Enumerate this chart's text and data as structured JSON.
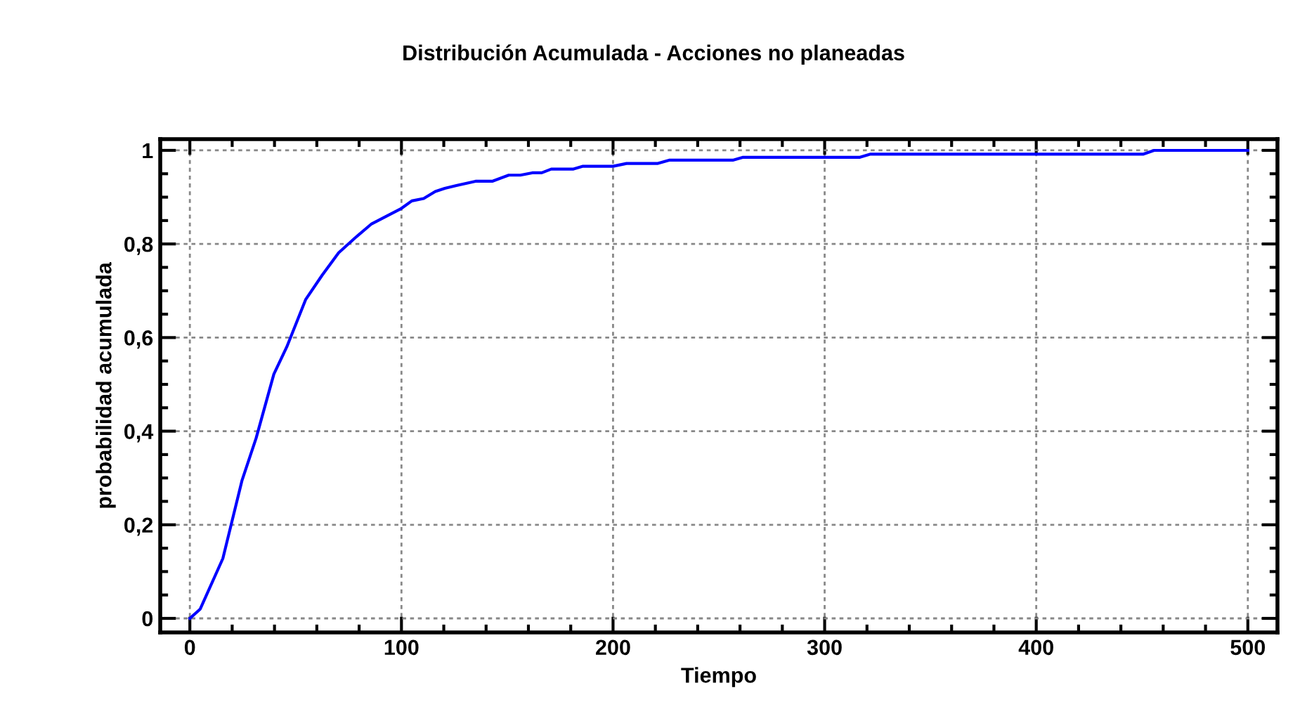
{
  "chart_data": {
    "type": "line",
    "title": "Distribución Acumulada - Acciones no planeadas",
    "xlabel": "Tiempo",
    "ylabel": "probabilidad acumulada",
    "series": [
      {
        "color": "#0000ff",
        "x": [
          0,
          4.9,
          15.6,
          24.6,
          31.3,
          39.7,
          45.8,
          54.7,
          62.5,
          70.3,
          78.1,
          85.9,
          91.5,
          100,
          104.9,
          110.5,
          116,
          120.5,
          126,
          135,
          142.9,
          150.7,
          156.2,
          161.8,
          166.3,
          170.8,
          181.3,
          185.8,
          200,
          206.4,
          221.2,
          226.5,
          256.6,
          261.2,
          316.4,
          321.7,
          450.7,
          455.7,
          500
        ],
        "values": [
          0,
          0.02,
          0.128,
          0.294,
          0.385,
          0.522,
          0.58,
          0.681,
          0.733,
          0.781,
          0.813,
          0.843,
          0.856,
          0.876,
          0.892,
          0.897,
          0.912,
          0.919,
          0.925,
          0.934,
          0.934,
          0.947,
          0.947,
          0.952,
          0.952,
          0.96,
          0.96,
          0.966,
          0.966,
          0.972,
          0.972,
          0.979,
          0.979,
          0.985,
          0.985,
          0.992,
          0.992,
          1,
          1
        ]
      }
    ],
    "xlim": [
      -14,
      514
    ],
    "ylim": [
      -0.03,
      1.024
    ],
    "xticks": [
      0,
      100,
      200,
      300,
      400,
      500
    ],
    "yticks": [
      0,
      {
        "value": 0.2,
        "label": "0,2"
      },
      {
        "value": 0.4,
        "label": "0,4"
      },
      {
        "value": 0.6,
        "label": "0,6"
      },
      {
        "value": 0.8,
        "label": "0,8"
      },
      1
    ],
    "grid": true,
    "line_style": "solid",
    "marker": "none",
    "legend": false
  }
}
